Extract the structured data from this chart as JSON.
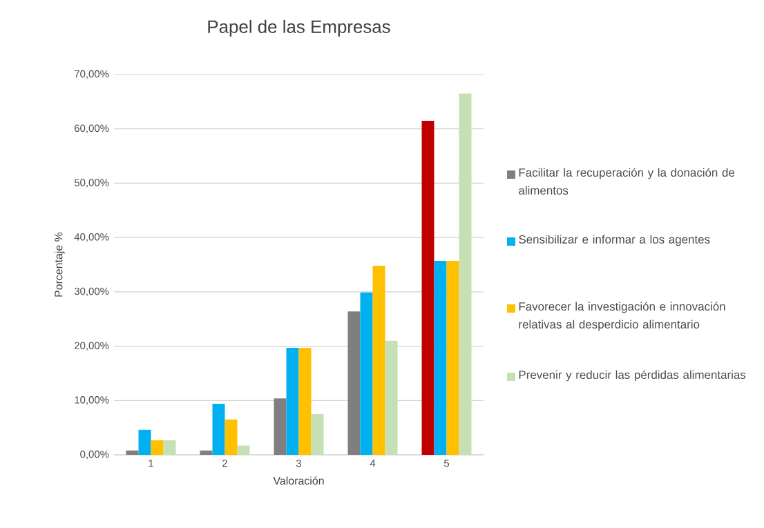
{
  "chart_data": {
    "type": "bar",
    "title": "Papel de las Empresas",
    "xlabel": "Valoración",
    "ylabel": "Porcentaje %",
    "categories": [
      "1",
      "2",
      "3",
      "4",
      "5"
    ],
    "series": [
      {
        "name": "Facilitar la recuperación y la donación de alimentos",
        "color": "#7f7f7f",
        "colors": [
          "#7f7f7f",
          "#7f7f7f",
          "#7f7f7f",
          "#7f7f7f",
          "#c00000"
        ],
        "values": [
          0.8,
          0.8,
          10.4,
          26.4,
          61.5
        ]
      },
      {
        "name": "Sensibilizar e informar a los agentes",
        "color": "#00b0f0",
        "values": [
          4.6,
          9.4,
          19.7,
          29.9,
          35.7
        ]
      },
      {
        "name": "Favorecer la investigación e innovación relativas al desperdicio alimentario",
        "color": "#ffc000",
        "values": [
          2.7,
          6.5,
          19.7,
          34.8,
          35.7
        ]
      },
      {
        "name": "Prevenir y reducir las pérdidas alimentarias",
        "color": "#c5e0b4",
        "values": [
          2.7,
          1.7,
          7.5,
          21.0,
          66.5
        ]
      }
    ],
    "ylim": [
      0,
      70
    ],
    "yticks": [
      {
        "value": 0,
        "label": "0,00%"
      },
      {
        "value": 10,
        "label": "10,00%"
      },
      {
        "value": 20,
        "label": "20,00%"
      },
      {
        "value": 30,
        "label": "30,00%"
      },
      {
        "value": 40,
        "label": "40,00%"
      },
      {
        "value": 50,
        "label": "50,00%"
      },
      {
        "value": 60,
        "label": "60,00%"
      },
      {
        "value": 70,
        "label": "70,00%"
      }
    ],
    "grid": "y",
    "legend": "right"
  }
}
